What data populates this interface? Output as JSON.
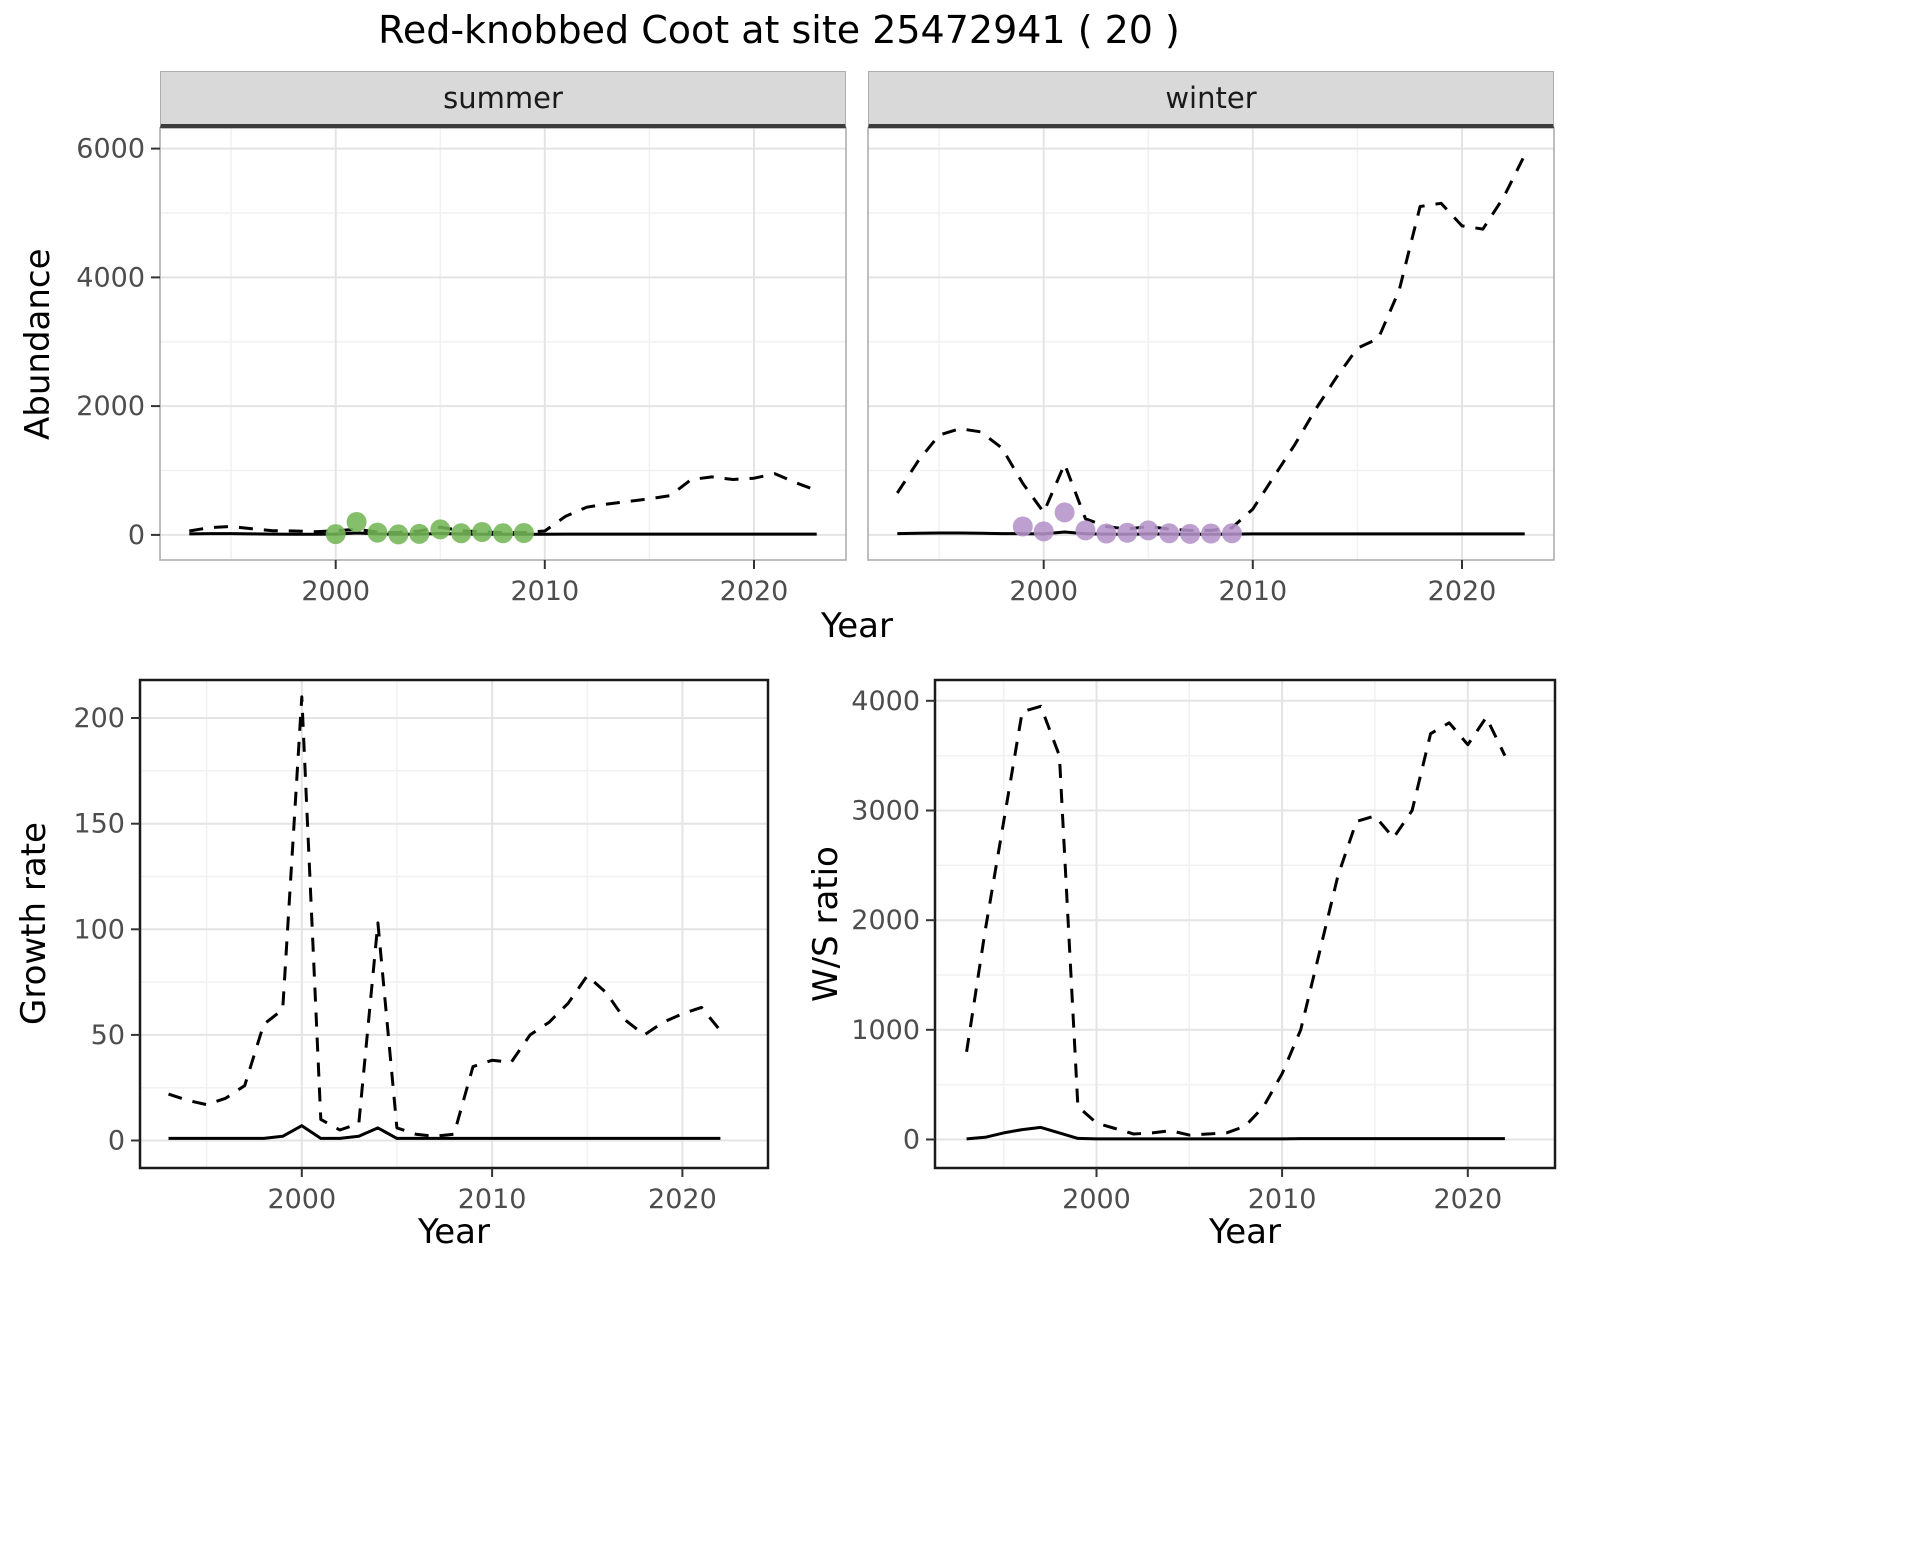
{
  "title": "Red-knobbed Coot at site 25472941 ( 20 )",
  "colors": {
    "line": "#000000",
    "grid_major": "#e4e4e4",
    "grid_minor": "#f1f1f1",
    "tick_text": "#4d4d4d",
    "strip_bg": "#d9d9d9",
    "facet_border": "#a8a8a8",
    "box_border": "#1a1a1a",
    "summer_points": "#74b656",
    "winter_points": "#b493c8"
  },
  "chart_data": [
    {
      "type": "line",
      "facet_label": "summer",
      "xlabel": "Year",
      "ylabel": "Abundance",
      "xlim": [
        1991.6,
        2024.4
      ],
      "ylim": [
        -390,
        6320
      ],
      "xticks": [
        2000,
        2010,
        2020
      ],
      "yticks": [
        0,
        2000,
        4000,
        6000
      ],
      "grid": true,
      "legend": "none",
      "x": [
        1993,
        1994,
        1995,
        1996,
        1997,
        1998,
        1999,
        2000,
        2001,
        2002,
        2003,
        2004,
        2005,
        2006,
        2007,
        2008,
        2009,
        2010,
        2011,
        2012,
        2013,
        2014,
        2015,
        2016,
        2017,
        2018,
        2019,
        2020,
        2021,
        2022,
        2023
      ],
      "series": [
        {
          "name": "upper-bound-dashed",
          "style": "dashed",
          "y": [
            60,
            115,
            130,
            95,
            65,
            60,
            50,
            65,
            85,
            45,
            35,
            60,
            120,
            65,
            45,
            35,
            35,
            60,
            290,
            430,
            480,
            520,
            560,
            610,
            860,
            900,
            860,
            880,
            950,
            810,
            690
          ]
        },
        {
          "name": "model-fit-solid",
          "style": "solid",
          "y": [
            15,
            20,
            20,
            15,
            12,
            10,
            10,
            12,
            30,
            15,
            10,
            12,
            22,
            14,
            10,
            10,
            10,
            10,
            12,
            12,
            12,
            12,
            12,
            12,
            12,
            12,
            12,
            12,
            12,
            12,
            12
          ]
        }
      ],
      "points": {
        "name": "observed-summer-count",
        "color_key": "summer_points",
        "x": [
          2000,
          2001,
          2002,
          2003,
          2004,
          2005,
          2006,
          2007,
          2008,
          2009
        ],
        "y": [
          12,
          200,
          35,
          8,
          15,
          85,
          25,
          45,
          25,
          30
        ]
      }
    },
    {
      "type": "line",
      "facet_label": "winter",
      "xlabel": "Year",
      "ylabel": "Abundance",
      "xlim": [
        1991.6,
        2024.4
      ],
      "ylim": [
        -390,
        6320
      ],
      "xticks": [
        2000,
        2010,
        2020
      ],
      "yticks": [
        0,
        2000,
        4000,
        6000
      ],
      "grid": true,
      "legend": "none",
      "x": [
        1993,
        1994,
        1995,
        1996,
        1997,
        1998,
        1999,
        2000,
        2001,
        2002,
        2003,
        2004,
        2005,
        2006,
        2007,
        2008,
        2009,
        2010,
        2011,
        2012,
        2013,
        2014,
        2015,
        2016,
        2017,
        2018,
        2019,
        2020,
        2021,
        2022,
        2023
      ],
      "series": [
        {
          "name": "upper-bound-dashed",
          "style": "dashed",
          "y": [
            650,
            1150,
            1550,
            1650,
            1600,
            1350,
            800,
            350,
            1100,
            250,
            130,
            90,
            130,
            90,
            70,
            70,
            110,
            400,
            900,
            1400,
            1950,
            2450,
            2900,
            3050,
            3800,
            5100,
            5150,
            4800,
            4750,
            5250,
            5900
          ]
        },
        {
          "name": "model-fit-solid",
          "style": "solid",
          "y": [
            20,
            25,
            30,
            30,
            25,
            20,
            18,
            15,
            45,
            18,
            12,
            10,
            15,
            12,
            10,
            10,
            12,
            15,
            15,
            15,
            15,
            15,
            15,
            15,
            15,
            15,
            15,
            15,
            15,
            15,
            15
          ]
        }
      ],
      "points": {
        "name": "observed-winter-count",
        "color_key": "winter_points",
        "x": [
          1999,
          2000,
          2001,
          2002,
          2003,
          2004,
          2005,
          2006,
          2007,
          2008,
          2009
        ],
        "y": [
          130,
          55,
          350,
          70,
          22,
          32,
          70,
          25,
          15,
          22,
          25
        ]
      }
    },
    {
      "type": "line",
      "facet_label": "",
      "xlabel": "Year",
      "ylabel": "Growth rate",
      "xlim": [
        1991.5,
        2024.5
      ],
      "ylim": [
        -13,
        218
      ],
      "xticks": [
        2000,
        2010,
        2020
      ],
      "yticks": [
        0,
        50,
        100,
        150,
        200
      ],
      "grid": true,
      "legend": "none",
      "x": [
        1993,
        1994,
        1995,
        1996,
        1997,
        1998,
        1999,
        2000,
        2001,
        2002,
        2003,
        2004,
        2005,
        2006,
        2007,
        2008,
        2009,
        2010,
        2011,
        2012,
        2013,
        2014,
        2015,
        2016,
        2017,
        2018,
        2019,
        2020,
        2021,
        2022
      ],
      "series": [
        {
          "name": "growth-rate-dashed",
          "style": "dashed",
          "y": [
            22,
            19,
            17,
            20,
            26,
            55,
            62,
            210,
            10,
            5,
            8,
            103,
            6,
            3,
            2,
            3,
            35,
            38,
            37,
            50,
            56,
            65,
            78,
            70,
            57,
            50,
            56,
            60,
            63,
            52
          ]
        },
        {
          "name": "growth-rate-solid",
          "style": "solid",
          "y": [
            1,
            1,
            1,
            1,
            1,
            1,
            2,
            7,
            1,
            1,
            2,
            6,
            1,
            1,
            1,
            1,
            1,
            1,
            1,
            1,
            1,
            1,
            1,
            1,
            1,
            1,
            1,
            1,
            1,
            1
          ]
        }
      ],
      "points": null
    },
    {
      "type": "line",
      "facet_label": "",
      "xlabel": "Year",
      "ylabel": "W/S ratio",
      "xlim": [
        1991.3,
        2024.7
      ],
      "ylim": [
        -260,
        4190
      ],
      "xticks": [
        2000,
        2010,
        2020
      ],
      "yticks": [
        0,
        1000,
        2000,
        3000,
        4000
      ],
      "grid": true,
      "legend": "none",
      "x": [
        1993,
        1994,
        1995,
        1996,
        1997,
        1998,
        1999,
        2000,
        2001,
        2002,
        2003,
        2004,
        2005,
        2006,
        2007,
        2008,
        2009,
        2010,
        2011,
        2012,
        2013,
        2014,
        2015,
        2016,
        2017,
        2018,
        2019,
        2020,
        2021,
        2022
      ],
      "series": [
        {
          "name": "ws-ratio-dashed",
          "style": "dashed",
          "y": [
            800,
            1900,
            2900,
            3900,
            3950,
            3500,
            300,
            150,
            100,
            50,
            60,
            80,
            40,
            50,
            60,
            120,
            300,
            600,
            1000,
            1700,
            2400,
            2900,
            2950,
            2750,
            3000,
            3700,
            3800,
            3600,
            3850,
            3500
          ]
        },
        {
          "name": "ws-ratio-solid",
          "style": "solid",
          "y": [
            5,
            20,
            60,
            90,
            110,
            60,
            10,
            5,
            5,
            5,
            5,
            5,
            5,
            5,
            5,
            5,
            5,
            5,
            8,
            8,
            8,
            8,
            8,
            8,
            8,
            8,
            8,
            8,
            8,
            8
          ]
        }
      ],
      "points": null
    }
  ]
}
